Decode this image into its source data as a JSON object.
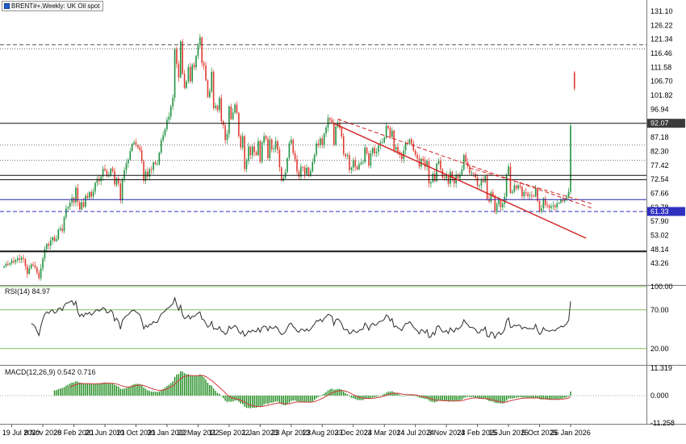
{
  "window": {
    "title": "BRENT#+,Weekly: UK Oil spot"
  },
  "panes": {
    "rsi_label": "RSI(14) 84.97",
    "macd_label": "MACD(12,26,9) 0.542 0.716"
  },
  "chart_data": {
    "type": "candlestick",
    "symbol": "BRENT#+",
    "timeframe": "Weekly",
    "description": "UK Oil spot",
    "title": "BRENT#+,Weekly: UK Oil spot",
    "ylim": [
      38,
      134
    ],
    "closes": [
      42.2,
      43.0,
      42.8,
      43.3,
      44.2,
      43.7,
      44.4,
      45.0,
      44.5,
      45.2,
      44.8,
      42.3,
      39.6,
      41.5,
      42.9,
      42.5,
      41.8,
      40.0,
      38.1,
      41.5,
      44.9,
      48.2,
      50.0,
      49.4,
      51.3,
      52.3,
      51.0,
      51.7,
      55.0,
      55.4,
      54.5,
      59.3,
      62.4,
      62.9,
      64.4,
      66.1,
      64.5,
      69.6,
      64.6,
      62.0,
      64.6,
      63.0,
      66.8,
      66.1,
      68.1,
      66.5,
      68.3,
      71.3,
      72.7,
      71.9,
      73.5,
      76.2,
      75.6,
      73.6,
      74.1,
      76.3,
      75.4,
      70.7,
      72.9,
      71.1,
      65.2,
      72.7,
      75.7,
      78.1,
      79.3,
      82.4,
      84.9,
      85.5,
      84.4,
      83.7,
      82.7,
      78.9,
      72.0,
      75.2,
      73.5,
      76.1,
      75.8,
      78.5,
      77.8,
      77.8,
      81.8,
      86.1,
      87.9,
      90.0,
      93.3,
      94.4,
      97.9,
      101.0,
      118.1,
      112.7,
      108.0,
      120.6,
      109.3,
      104.4,
      106.6,
      111.7,
      106.7,
      112.4,
      111.6,
      115.6,
      119.4,
      122.0,
      113.1,
      112.2,
      107.0,
      101.2,
      103.2,
      110.0,
      97.4,
      98.2,
      96.7,
      100.9,
      92.8,
      91.4,
      86.2,
      88.4,
      97.9,
      93.5,
      95.8,
      98.6,
      95.7,
      87.6,
      83.6,
      87.6,
      76.1,
      79.0,
      83.9,
      80.9,
      84.0,
      82.0,
      81.0,
      85.9,
      78.6,
      85.3,
      87.6,
      86.7,
      79.9,
      86.4,
      83.0,
      83.2,
      85.8,
      82.8,
      76.7,
      72.0,
      73.0,
      75.0,
      79.9,
      85.1,
      86.3,
      81.7,
      79.5,
      75.3,
      73.5,
      76.9,
      76.7,
      74.2,
      76.6,
      73.8,
      75.4,
      78.5,
      81.1,
      85.0,
      84.4,
      86.8,
      84.5,
      88.5,
      90.6,
      93.9,
      93.3,
      92.2,
      84.6,
      90.9,
      92.2,
      90.5,
      87.5,
      81.4,
      80.6,
      81.0,
      75.8,
      76.6,
      79.1,
      77.0,
      76.0,
      77.8,
      78.3,
      78.6,
      83.6,
      81.6,
      77.3,
      81.6,
      83.5,
      81.6,
      82.1,
      84.5,
      85.3,
      85.4,
      87.0,
      91.2,
      90.4,
      87.3,
      89.5,
      82.8,
      83.8,
      82.1,
      81.1,
      79.6,
      82.6,
      85.2,
      85.0,
      86.5,
      85.0,
      82.6,
      81.1,
      79.8,
      77.0,
      79.7,
      79.0,
      76.9,
      78.9,
      71.1,
      71.6,
      74.5,
      71.9,
      78.0,
      79.0,
      76.0,
      73.1,
      72.9,
      73.9,
      71.0,
      75.2,
      72.9,
      71.1,
      74.2,
      72.9,
      74.2,
      76.0,
      81.0,
      78.5,
      77.1,
      74.7,
      74.7,
      74.4,
      73.2,
      70.4,
      70.4,
      72.2,
      71.6,
      73.6,
      65.6,
      64.8,
      68.0,
      66.9,
      61.3,
      63.9,
      65.4,
      62.8,
      64.0,
      66.5,
      74.2,
      77.0,
      67.8,
      68.3,
      70.4,
      69.3,
      70.4,
      69.9,
      66.6,
      68.1,
      67.7,
      66.7,
      67.0,
      66.7,
      66.6,
      69.5,
      65.0,
      61.3,
      62.4,
      65.9,
      63.6,
      63.4,
      62.6,
      63.2,
      63.4,
      62.8,
      64.1,
      64.4,
      65.3,
      64.9,
      65.5,
      66.4,
      68.2,
      91.3
    ],
    "outlier_candle": {
      "offset": 2,
      "o": 109.8,
      "h": 110.3,
      "l": 103.4,
      "c": 104.2
    },
    "x_labels": [
      "19 Jul 2020",
      "8 Nov 2020",
      "28 Feb 2021",
      "20 Jun 2021",
      "10 Oct 2021",
      "30 Jan 2022",
      "22 May 2022",
      "11 Sep 2022",
      "1 Jan 2023",
      "23 Apr 2023",
      "13 Aug 2023",
      "3 Dec 2023",
      "24 Mar 2024",
      "14 Jul 2024",
      "3 Nov 2024",
      "23 Feb 2025",
      "15 Jun 2025",
      "5 Oct 2025",
      "26 Jan 2026"
    ],
    "x_label_start_index": 4,
    "x_label_step": 16,
    "price_labels": [
      "131.10",
      "126.22",
      "121.34",
      "116.46",
      "111.58",
      "106.70",
      "101.82",
      "96.94",
      "92.06",
      "87.18",
      "82.30",
      "77.42",
      "72.54",
      "67.66",
      "62.78",
      "57.90",
      "53.02",
      "48.14",
      "43.26"
    ],
    "hlines": [
      {
        "price": 119.46,
        "style": "dashed",
        "color": "#555555",
        "width": 1
      },
      {
        "price": 117.99,
        "style": "dotted",
        "color": "#666666",
        "width": 1
      },
      {
        "price": 92.07,
        "style": "solid",
        "color": "#111111",
        "width": 1,
        "tag": "92.07",
        "tag_bg": "#3a3a3a"
      },
      {
        "price": 84.5,
        "style": "dotted",
        "color": "#777777",
        "width": 1
      },
      {
        "price": 79.2,
        "style": "dotted",
        "color": "#777777",
        "width": 1
      },
      {
        "price": 73.9,
        "style": "solid",
        "color": "#111111",
        "width": 1
      },
      {
        "price": 72.4,
        "style": "solid",
        "color": "#111111",
        "width": 1
      },
      {
        "price": 65.46,
        "style": "solid",
        "color": "#2222aa",
        "width": 1
      },
      {
        "price": 61.33,
        "style": "dashed",
        "color": "#2f2fc0",
        "width": 1,
        "tag": "61.33",
        "tag_bg": "#2f2fc0"
      },
      {
        "price": 47.44,
        "style": "solid",
        "color": "#111111",
        "width": 2
      }
    ],
    "trendlines": [
      {
        "i1": 170,
        "p1": 92.0,
        "i2": 300,
        "p2": 52.0,
        "style": "solid",
        "color": "#d02020",
        "width": 1.4
      },
      {
        "i1": 172,
        "p1": 93.5,
        "i2": 303,
        "p2": 62.5,
        "style": "dashed",
        "color": "#d02020",
        "width": 1
      },
      {
        "i1": 240,
        "p1": 76.5,
        "i2": 303,
        "p2": 64.0,
        "style": "dashed",
        "color": "#d02020",
        "width": 1
      }
    ],
    "indicators": {
      "rsi": {
        "period": 14,
        "current": "84.97",
        "levels": [
          100,
          70,
          20
        ],
        "axis_labels": [
          "100.00",
          "70.00",
          "20.00"
        ]
      },
      "macd": {
        "params": "12,26,9",
        "values": "0.542 0.716",
        "axis_labels": [
          "11.319",
          "0.000",
          "-11.258"
        ],
        "axis_values": [
          11.319,
          0.0,
          -11.258
        ]
      }
    },
    "colors": {
      "bg": "#ffffff",
      "up": "#1f9240",
      "down": "#e03a2f",
      "rsi_line": "#2b2b2b",
      "rsi_level": "#7fbf5f",
      "macd_hist": "#1c8a1c",
      "macd_signal": "#d03a3a",
      "axis_text": "#000000",
      "separator": "#7a7a7a",
      "tag_text": "#ffffff"
    }
  }
}
